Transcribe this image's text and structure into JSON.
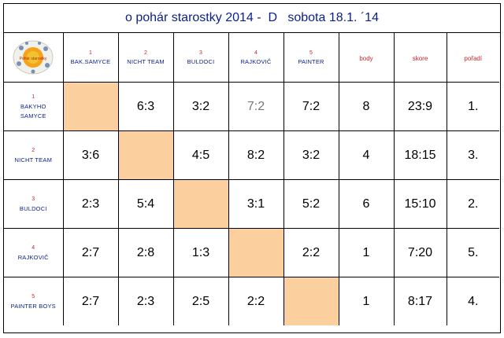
{
  "title": "o pohár starostky 2014 -  D   sobota 18.1. ´14",
  "columns": [
    {
      "num": "1",
      "name": "BAK.SAMYCE"
    },
    {
      "num": "2",
      "name": "NICHT TEAM"
    },
    {
      "num": "3",
      "name": "BULDOCI"
    },
    {
      "num": "4",
      "name": "RAJKOVIČ"
    },
    {
      "num": "5",
      "name": "PAINTER"
    }
  ],
  "stat_headers": {
    "points": "body",
    "score": "skore",
    "rank": "pořadí"
  },
  "rows": [
    {
      "num": "1",
      "name_lines": [
        "BAKYHO",
        "SAMYCE"
      ],
      "results": [
        "",
        "6:3",
        "3:2",
        "7:2",
        "7:2"
      ],
      "points": "8",
      "score": "23:9",
      "rank": "1."
    },
    {
      "num": "2",
      "name_lines": [
        "NICHT TEAM"
      ],
      "results": [
        "3:6",
        "",
        "4:5",
        "8:2",
        "3:2"
      ],
      "points": "4",
      "score": "18:15",
      "rank": "3."
    },
    {
      "num": "3",
      "name_lines": [
        "BULDOCI"
      ],
      "results": [
        "2:3",
        "5:4",
        "",
        "3:1",
        "5:2"
      ],
      "points": "6",
      "score": "15:10",
      "rank": "2."
    },
    {
      "num": "4",
      "name_lines": [
        "RAJKOVIČ"
      ],
      "results": [
        "2:7",
        "2:8",
        "1:3",
        "",
        "2:2"
      ],
      "points": "1",
      "score": "7:20",
      "rank": "5."
    },
    {
      "num": "5",
      "name_lines": [
        "PAINTER BOYS"
      ],
      "results": [
        "2:7",
        "2:3",
        "2:5",
        "2:2",
        ""
      ],
      "points": "1",
      "score": "8:17",
      "rank": "4."
    }
  ],
  "colors": {
    "title": "#0a1f8a",
    "number": "#c0282e",
    "diagonal": "#fbcf9e"
  },
  "logo": {
    "icon": "club-emblem-icon",
    "text": "Pohár starostky"
  }
}
